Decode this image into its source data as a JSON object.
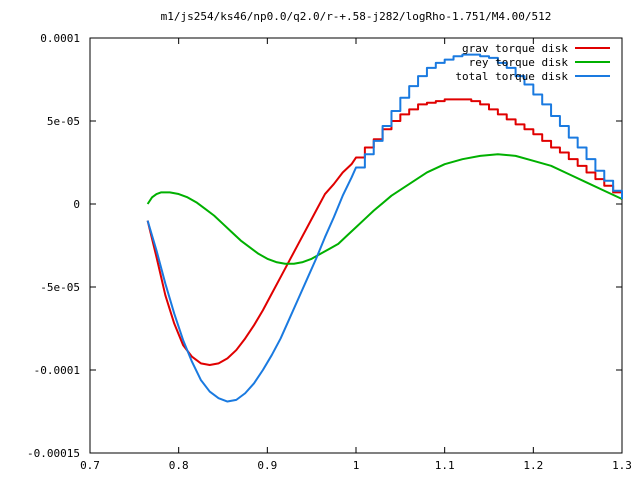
{
  "chart_data": {
    "type": "line",
    "title": "m1/js254/ks46/np0.0/q2.0/r-+.58-j282/logRho-1.751/M4.00/512",
    "xlabel": "",
    "ylabel": "",
    "xlim": [
      0.7,
      1.3
    ],
    "ylim": [
      -0.00015,
      0.0001
    ],
    "x_ticks": [
      0.7,
      0.8,
      0.9,
      1.0,
      1.1,
      1.2,
      1.3
    ],
    "x_tick_labels": [
      "0.7",
      "0.8",
      "0.9",
      "1",
      "1.1",
      "1.2",
      "1.3"
    ],
    "y_ticks": [
      -0.00015,
      -0.0001,
      -5e-05,
      0,
      5e-05,
      0.0001
    ],
    "y_tick_labels": [
      "-0.00015",
      "-0.0001",
      "-5e-05",
      "0",
      "5e-05",
      "0.0001"
    ],
    "grid": false,
    "legend_position": "top-right",
    "series": [
      {
        "name": "grav torque disk",
        "color": "#e00000",
        "x": [
          0.765,
          0.775,
          0.785,
          0.795,
          0.805,
          0.815,
          0.825,
          0.835,
          0.845,
          0.855,
          0.865,
          0.875,
          0.885,
          0.895,
          0.905,
          0.915,
          0.925,
          0.935,
          0.945,
          0.955,
          0.965,
          0.975,
          0.985,
          0.995,
          1.0,
          1.01,
          1.02,
          1.03,
          1.04,
          1.05,
          1.06,
          1.07,
          1.08,
          1.09,
          1.1,
          1.11,
          1.12,
          1.13,
          1.14,
          1.15,
          1.16,
          1.17,
          1.18,
          1.19,
          1.2,
          1.21,
          1.22,
          1.23,
          1.24,
          1.25,
          1.26,
          1.27,
          1.28,
          1.29,
          1.3
        ],
        "y": [
          -1e-05,
          -3.2e-05,
          -5.5e-05,
          -7.2e-05,
          -8.5e-05,
          -9.2e-05,
          -9.6e-05,
          -9.7e-05,
          -9.6e-05,
          -9.3e-05,
          -8.8e-05,
          -8.1e-05,
          -7.3e-05,
          -6.4e-05,
          -5.4e-05,
          -4.4e-05,
          -3.4e-05,
          -2.4e-05,
          -1.4e-05,
          -4e-06,
          6e-06,
          1.2e-05,
          1.9e-05,
          2.4e-05,
          2.8e-05,
          3.4e-05,
          3.9e-05,
          4.5e-05,
          5e-05,
          5.4e-05,
          5.7e-05,
          6e-05,
          6.1e-05,
          6.2e-05,
          6.3e-05,
          6.3e-05,
          6.3e-05,
          6.2e-05,
          6e-05,
          5.7e-05,
          5.4e-05,
          5.1e-05,
          4.8e-05,
          4.5e-05,
          4.2e-05,
          3.8e-05,
          3.4e-05,
          3.1e-05,
          2.7e-05,
          2.3e-05,
          1.9e-05,
          1.5e-05,
          1.1e-05,
          7e-06,
          3e-06
        ]
      },
      {
        "name": "rey torque disk",
        "color": "#00b000",
        "x": [
          0.765,
          0.77,
          0.775,
          0.78,
          0.785,
          0.79,
          0.8,
          0.81,
          0.82,
          0.83,
          0.84,
          0.85,
          0.86,
          0.87,
          0.88,
          0.89,
          0.9,
          0.91,
          0.92,
          0.93,
          0.94,
          0.95,
          0.96,
          0.97,
          0.98,
          0.99,
          1.0,
          1.01,
          1.02,
          1.04,
          1.06,
          1.08,
          1.1,
          1.12,
          1.14,
          1.16,
          1.18,
          1.2,
          1.22,
          1.24,
          1.26,
          1.28,
          1.3
        ],
        "y": [
          0.0,
          4e-06,
          6e-06,
          7e-06,
          7e-06,
          7e-06,
          6e-06,
          4e-06,
          1e-06,
          -3e-06,
          -7e-06,
          -1.2e-05,
          -1.7e-05,
          -2.2e-05,
          -2.6e-05,
          -3e-05,
          -3.3e-05,
          -3.5e-05,
          -3.6e-05,
          -3.6e-05,
          -3.5e-05,
          -3.3e-05,
          -3e-05,
          -2.7e-05,
          -2.4e-05,
          -1.9e-05,
          -1.4e-05,
          -9e-06,
          -4e-06,
          5e-06,
          1.2e-05,
          1.9e-05,
          2.4e-05,
          2.7e-05,
          2.9e-05,
          3e-05,
          2.9e-05,
          2.6e-05,
          2.3e-05,
          1.8e-05,
          1.3e-05,
          8e-06,
          3e-06
        ]
      },
      {
        "name": "total torque disk",
        "color": "#1a7ae0",
        "x": [
          0.765,
          0.775,
          0.785,
          0.795,
          0.805,
          0.815,
          0.825,
          0.835,
          0.845,
          0.855,
          0.865,
          0.875,
          0.885,
          0.895,
          0.905,
          0.915,
          0.925,
          0.935,
          0.945,
          0.955,
          0.965,
          0.975,
          0.985,
          0.995,
          1.0,
          1.01,
          1.02,
          1.03,
          1.04,
          1.05,
          1.06,
          1.07,
          1.08,
          1.09,
          1.1,
          1.11,
          1.12,
          1.13,
          1.14,
          1.15,
          1.16,
          1.17,
          1.18,
          1.19,
          1.2,
          1.21,
          1.22,
          1.23,
          1.24,
          1.25,
          1.26,
          1.27,
          1.28,
          1.29,
          1.3
        ],
        "y": [
          -1e-05,
          -2.8e-05,
          -4.8e-05,
          -6.6e-05,
          -8.2e-05,
          -9.5e-05,
          -0.000106,
          -0.000113,
          -0.000117,
          -0.000119,
          -0.000118,
          -0.000114,
          -0.000108,
          -0.0001,
          -9.1e-05,
          -8.1e-05,
          -6.9e-05,
          -5.7e-05,
          -4.5e-05,
          -3.3e-05,
          -2e-05,
          -8e-06,
          5e-06,
          1.6e-05,
          2.2e-05,
          3e-05,
          3.8e-05,
          4.7e-05,
          5.6e-05,
          6.4e-05,
          7.1e-05,
          7.7e-05,
          8.2e-05,
          8.5e-05,
          8.7e-05,
          8.9e-05,
          9e-05,
          9e-05,
          8.9e-05,
          8.8e-05,
          8.5e-05,
          8.2e-05,
          7.7e-05,
          7.2e-05,
          6.6e-05,
          6e-05,
          5.3e-05,
          4.7e-05,
          4e-05,
          3.4e-05,
          2.7e-05,
          2e-05,
          1.4e-05,
          8e-06,
          3e-06
        ]
      }
    ]
  }
}
